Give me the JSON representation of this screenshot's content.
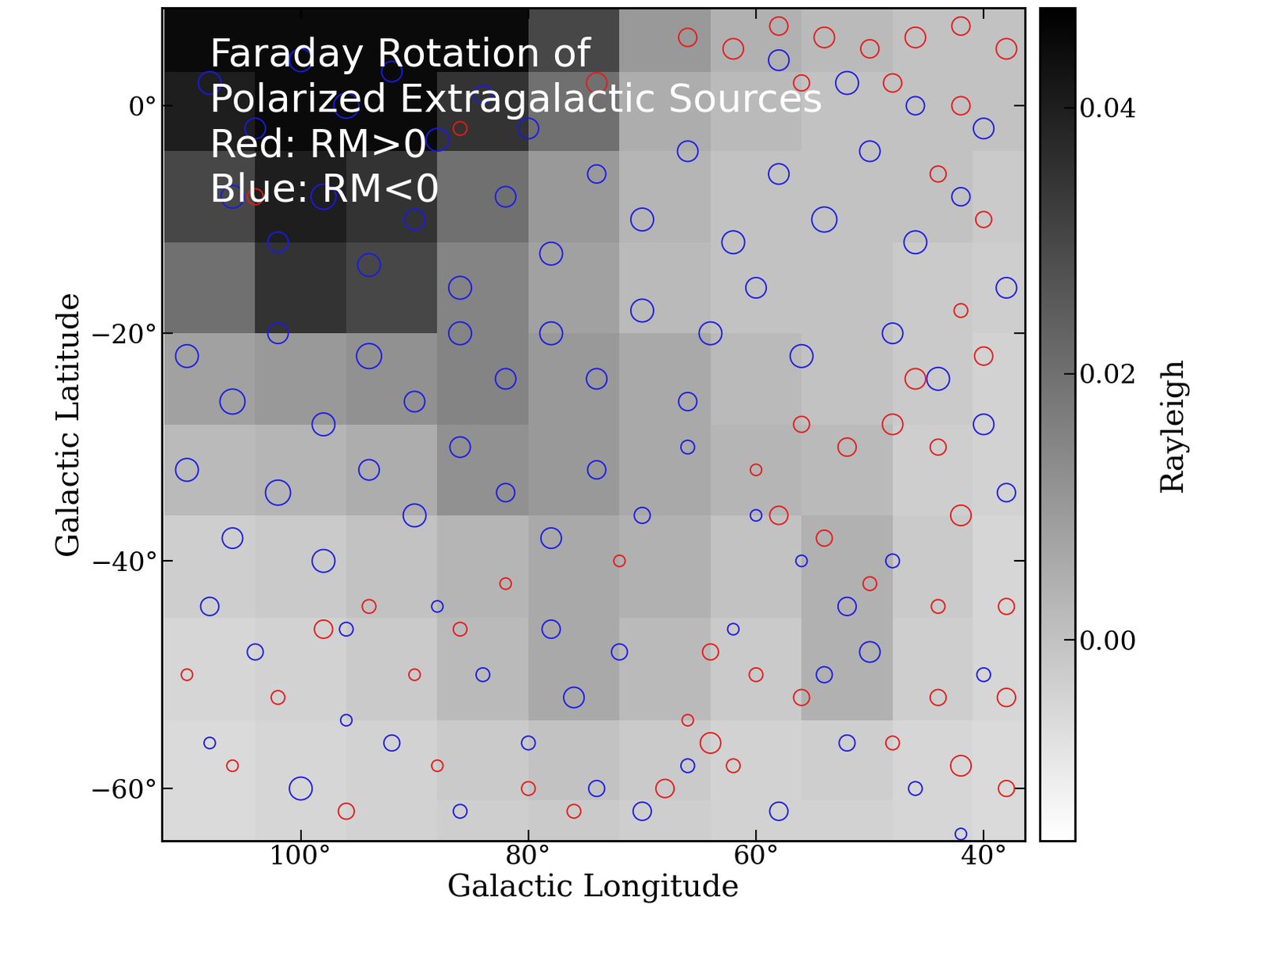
{
  "chart_data": {
    "type": "scatter",
    "x_label": "Galactic Longitude",
    "y_label": "Galactic Latitude",
    "annotations": [
      "Faraday Rotation of",
      "Polarized Extragalactic Sources",
      "Red: RM>0",
      "Blue: RM<0"
    ],
    "xlim": [
      112.2,
      36.4
    ],
    "ylim": [
      -64.6,
      8.6
    ],
    "xticks": [
      {
        "value": 100,
        "label": "100°"
      },
      {
        "value": 80,
        "label": "80°"
      },
      {
        "value": 60,
        "label": "60°"
      },
      {
        "value": 40,
        "label": "40°"
      }
    ],
    "yticks": [
      {
        "value": 0,
        "label": "0°"
      },
      {
        "value": -20,
        "label": "−20°"
      },
      {
        "value": -40,
        "label": "−40°"
      },
      {
        "value": -60,
        "label": "−60°"
      }
    ],
    "heatmap": {
      "x": [
        38,
        44,
        52,
        60,
        68,
        76,
        84,
        92,
        100,
        108
      ],
      "y": [
        6,
        0,
        -8,
        -16,
        -24,
        -32,
        -40,
        -50,
        -58,
        -64
      ],
      "values": [
        [
          0.0,
          0.0,
          0.002,
          0.004,
          0.01,
          0.03,
          0.045,
          0.045,
          0.045,
          0.045
        ],
        [
          0.0,
          0.0,
          0.0,
          0.002,
          0.005,
          0.02,
          0.035,
          0.045,
          0.045,
          0.04
        ],
        [
          -0.002,
          0.0,
          0.0,
          0.0,
          0.003,
          0.01,
          0.02,
          0.035,
          0.04,
          0.03
        ],
        [
          -0.003,
          -0.002,
          0.0,
          0.0,
          0.002,
          0.008,
          0.015,
          0.03,
          0.035,
          0.02
        ],
        [
          -0.004,
          -0.002,
          0.0,
          0.002,
          0.006,
          0.01,
          0.015,
          0.012,
          0.01,
          0.008
        ],
        [
          -0.004,
          -0.003,
          0.002,
          0.003,
          0.006,
          0.01,
          0.012,
          0.005,
          0.003,
          0.002
        ],
        [
          -0.005,
          -0.002,
          0.004,
          0.0,
          0.004,
          0.006,
          0.003,
          0.0,
          -0.002,
          -0.003
        ],
        [
          -0.005,
          -0.003,
          0.004,
          -0.002,
          0.002,
          0.006,
          0.002,
          -0.002,
          -0.004,
          -0.005
        ],
        [
          -0.006,
          -0.005,
          -0.003,
          -0.004,
          -0.002,
          0.0,
          -0.002,
          -0.004,
          -0.005,
          -0.006
        ],
        [
          -0.006,
          -0.005,
          -0.004,
          -0.004,
          -0.003,
          -0.002,
          -0.003,
          -0.004,
          -0.005,
          -0.006
        ]
      ],
      "colorbar": {
        "label": "Rayleigh",
        "range": [
          -0.0151,
          0.0475
        ],
        "ticks": [
          {
            "value": 0.0,
            "label": "0.00"
          },
          {
            "value": 0.02,
            "label": "0.02"
          },
          {
            "value": 0.04,
            "label": "0.04"
          }
        ]
      }
    },
    "series": [
      {
        "color": "#1a1ae6",
        "points": [
          [
            108,
            2,
            1.0
          ],
          [
            104,
            -2,
            0.9
          ],
          [
            100,
            4,
            1.0
          ],
          [
            96,
            0,
            1.1
          ],
          [
            92,
            3,
            0.9
          ],
          [
            88,
            -3,
            1.0
          ],
          [
            84,
            1,
            0.8
          ],
          [
            80,
            -2,
            0.9
          ],
          [
            106,
            -8,
            1.0
          ],
          [
            102,
            -12,
            0.9
          ],
          [
            98,
            -8,
            1.1
          ],
          [
            94,
            -14,
            1.0
          ],
          [
            90,
            -10,
            0.9
          ],
          [
            86,
            -16,
            1.0
          ],
          [
            82,
            -8,
            0.9
          ],
          [
            78,
            -13,
            1.0
          ],
          [
            74,
            -6,
            0.8
          ],
          [
            70,
            -10,
            1.0
          ],
          [
            66,
            -4,
            0.9
          ],
          [
            62,
            -12,
            1.0
          ],
          [
            58,
            -6,
            0.9
          ],
          [
            54,
            -10,
            1.1
          ],
          [
            50,
            -4,
            0.9
          ],
          [
            46,
            -12,
            1.0
          ],
          [
            42,
            -8,
            0.8
          ],
          [
            38,
            -16,
            0.9
          ],
          [
            58,
            4,
            0.9
          ],
          [
            52,
            2,
            1.0
          ],
          [
            46,
            0,
            0.8
          ],
          [
            40,
            -2,
            0.9
          ],
          [
            64,
            -20,
            1.0
          ],
          [
            60,
            -16,
            0.9
          ],
          [
            56,
            -22,
            1.0
          ],
          [
            48,
            -20,
            0.9
          ],
          [
            44,
            -24,
            1.0
          ],
          [
            40,
            -28,
            0.9
          ],
          [
            38,
            -34,
            0.8
          ],
          [
            110,
            -22,
            1.0
          ],
          [
            106,
            -26,
            1.1
          ],
          [
            102,
            -20,
            0.9
          ],
          [
            98,
            -28,
            1.0
          ],
          [
            94,
            -22,
            1.1
          ],
          [
            90,
            -26,
            0.9
          ],
          [
            86,
            -20,
            1.0
          ],
          [
            82,
            -24,
            0.9
          ],
          [
            78,
            -20,
            1.0
          ],
          [
            74,
            -24,
            0.9
          ],
          [
            70,
            -18,
            1.0
          ],
          [
            66,
            -26,
            0.8
          ],
          [
            110,
            -32,
            1.0
          ],
          [
            106,
            -38,
            0.9
          ],
          [
            102,
            -34,
            1.1
          ],
          [
            98,
            -40,
            1.0
          ],
          [
            94,
            -32,
            0.9
          ],
          [
            90,
            -36,
            1.0
          ],
          [
            86,
            -30,
            0.9
          ],
          [
            82,
            -34,
            0.8
          ],
          [
            78,
            -38,
            0.9
          ],
          [
            74,
            -32,
            0.8
          ],
          [
            70,
            -36,
            0.7
          ],
          [
            66,
            -30,
            0.6
          ],
          [
            108,
            -44,
            0.8
          ],
          [
            104,
            -48,
            0.7
          ],
          [
            96,
            -46,
            0.6
          ],
          [
            88,
            -44,
            0.5
          ],
          [
            84,
            -50,
            0.6
          ],
          [
            78,
            -46,
            0.8
          ],
          [
            76,
            -52,
            0.9
          ],
          [
            72,
            -48,
            0.7
          ],
          [
            80,
            -56,
            0.6
          ],
          [
            52,
            -44,
            0.8
          ],
          [
            50,
            -48,
            0.9
          ],
          [
            54,
            -50,
            0.7
          ],
          [
            48,
            -40,
            0.6
          ],
          [
            56,
            -40,
            0.5
          ],
          [
            62,
            -46,
            0.5
          ],
          [
            100,
            -60,
            1.0
          ],
          [
            92,
            -56,
            0.7
          ],
          [
            86,
            -62,
            0.6
          ],
          [
            74,
            -60,
            0.7
          ],
          [
            66,
            -58,
            0.6
          ],
          [
            58,
            -62,
            0.8
          ],
          [
            52,
            -56,
            0.7
          ],
          [
            46,
            -60,
            0.6
          ],
          [
            40,
            -50,
            0.6
          ],
          [
            42,
            -64,
            0.5
          ],
          [
            108,
            -56,
            0.5
          ],
          [
            60,
            -36,
            0.5
          ],
          [
            70,
            -62,
            0.8
          ],
          [
            96,
            -54,
            0.5
          ]
        ]
      },
      {
        "color": "#e61a1a",
        "points": [
          [
            66,
            6,
            0.8
          ],
          [
            62,
            5,
            0.9
          ],
          [
            58,
            7,
            0.8
          ],
          [
            54,
            6,
            0.9
          ],
          [
            50,
            5,
            0.8
          ],
          [
            46,
            6,
            0.9
          ],
          [
            42,
            7,
            0.8
          ],
          [
            38,
            5,
            0.9
          ],
          [
            56,
            2,
            0.7
          ],
          [
            48,
            2,
            0.8
          ],
          [
            42,
            0,
            0.8
          ],
          [
            44,
            -6,
            0.7
          ],
          [
            40,
            -10,
            0.7
          ],
          [
            42,
            -18,
            0.6
          ],
          [
            46,
            -24,
            0.9
          ],
          [
            40,
            -22,
            0.8
          ],
          [
            48,
            -28,
            0.9
          ],
          [
            52,
            -30,
            0.8
          ],
          [
            56,
            -28,
            0.7
          ],
          [
            44,
            -30,
            0.7
          ],
          [
            58,
            -36,
            0.8
          ],
          [
            54,
            -38,
            0.7
          ],
          [
            50,
            -42,
            0.6
          ],
          [
            42,
            -36,
            0.9
          ],
          [
            38,
            -44,
            0.7
          ],
          [
            44,
            -44,
            0.6
          ],
          [
            38,
            -52,
            0.8
          ],
          [
            44,
            -52,
            0.7
          ],
          [
            48,
            -56,
            0.6
          ],
          [
            42,
            -58,
            0.9
          ],
          [
            38,
            -60,
            0.7
          ],
          [
            60,
            -32,
            0.5
          ],
          [
            64,
            -48,
            0.7
          ],
          [
            60,
            -50,
            0.6
          ],
          [
            56,
            -52,
            0.7
          ],
          [
            66,
            -54,
            0.5
          ],
          [
            68,
            -60,
            0.8
          ],
          [
            62,
            -58,
            0.6
          ],
          [
            72,
            -40,
            0.5
          ],
          [
            76,
            -62,
            0.6
          ],
          [
            82,
            -42,
            0.5
          ],
          [
            86,
            -46,
            0.6
          ],
          [
            90,
            -50,
            0.5
          ],
          [
            94,
            -44,
            0.6
          ],
          [
            98,
            -46,
            0.8
          ],
          [
            102,
            -52,
            0.6
          ],
          [
            106,
            -58,
            0.5
          ],
          [
            110,
            -50,
            0.5
          ],
          [
            96,
            -62,
            0.7
          ],
          [
            88,
            -58,
            0.5
          ],
          [
            80,
            -60,
            0.6
          ],
          [
            104,
            -8,
            0.7
          ],
          [
            74,
            2,
            0.9
          ],
          [
            86,
            -2,
            0.6
          ],
          [
            64,
            -56,
            0.9
          ]
        ]
      }
    ]
  }
}
